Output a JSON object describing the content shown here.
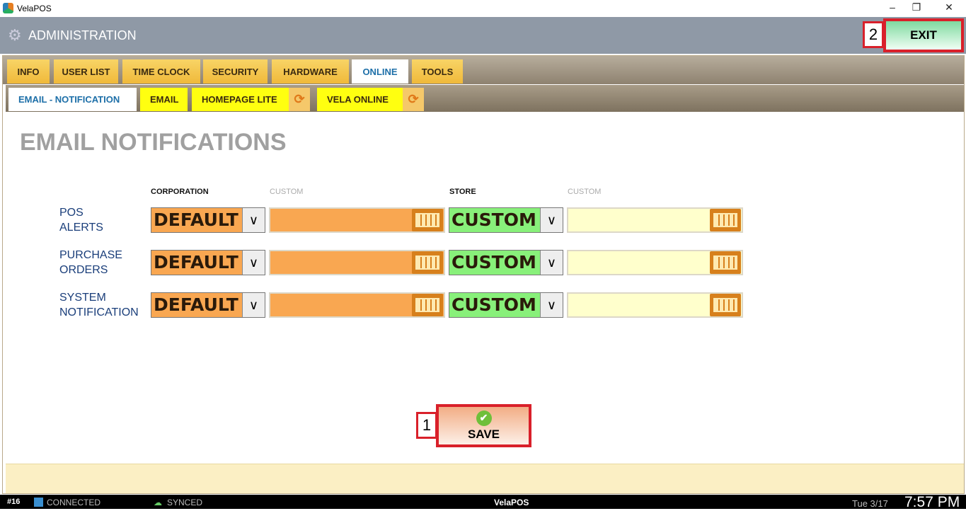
{
  "window": {
    "title": "VelaPOS",
    "minimize": "–",
    "restore": "❐",
    "close": "✕"
  },
  "header": {
    "title": "ADMINISTRATION",
    "exit_label": "EXIT",
    "exit_badge": "2"
  },
  "tabs": [
    {
      "label": "INFO"
    },
    {
      "label": "USER LIST"
    },
    {
      "label": "TIME CLOCK"
    },
    {
      "label": "SECURITY"
    },
    {
      "label": "HARDWARE"
    },
    {
      "label": "ONLINE",
      "active": true
    },
    {
      "label": "TOOLS"
    }
  ],
  "subtabs": [
    {
      "label": "EMAIL - NOTIFICATION",
      "active": true
    },
    {
      "label": "EMAIL"
    },
    {
      "label": "HOMEPAGE LITE",
      "sync_icon": true
    },
    {
      "label": "VELA ONLINE",
      "sync_icon": true
    }
  ],
  "main": {
    "title": "EMAIL NOTIFICATIONS",
    "columns": {
      "corporation": "CORPORATION",
      "corp_custom": "CUSTOM",
      "store": "STORE",
      "store_custom": "CUSTOM"
    },
    "rows": [
      {
        "label_line1": "POS",
        "label_line2": "ALERTS",
        "corporation": "DEFAULT",
        "corp_custom": "",
        "store": "CUSTOM",
        "store_custom": ""
      },
      {
        "label_line1": "PURCHASE",
        "label_line2": "ORDERS",
        "corporation": "DEFAULT",
        "corp_custom": "",
        "store": "CUSTOM",
        "store_custom": ""
      },
      {
        "label_line1": "SYSTEM",
        "label_line2": "NOTIFICATION",
        "corporation": "DEFAULT",
        "corp_custom": "",
        "store": "CUSTOM",
        "store_custom": ""
      }
    ],
    "save_label": "SAVE",
    "save_badge": "1"
  },
  "colors": {
    "corporation_field": "#f9a751",
    "store_select": "#88f07a",
    "store_custom_field": "#ffffcc",
    "highlight": "#d9202a"
  },
  "status": {
    "station": "#16",
    "connection": "CONNECTED",
    "sync": "SYNCED",
    "app": "VelaPOS",
    "date": "Tue 3/17",
    "time": "7:57 PM"
  }
}
